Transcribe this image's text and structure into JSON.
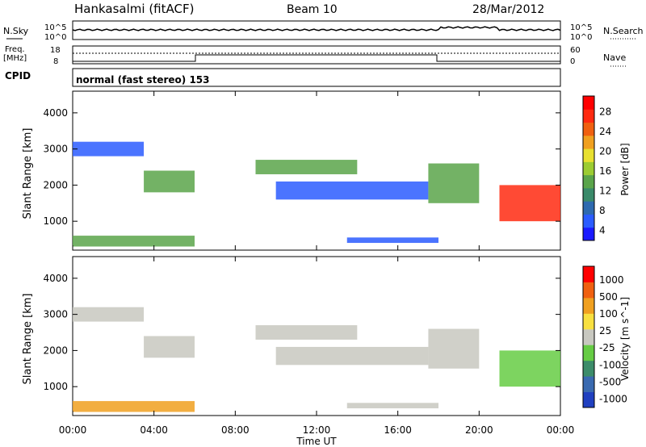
{
  "header": {
    "station": "Hankasalmi (fitACF)",
    "beam": "Beam 10",
    "date": "28/Mar/2012"
  },
  "status_panels": {
    "nsky_label": "N.Sky",
    "nsky_ticks": [
      "10^5",
      "10^0"
    ],
    "nsearch_label": "N.Search",
    "nsearch_ticks": [
      "10^5",
      "10^0"
    ],
    "freq_label": "Freq.",
    "freq_unit": "[MHz]",
    "freq_ticks": [
      "18",
      "8"
    ],
    "nave_label": "Nave",
    "nave_ticks": [
      "60",
      "0"
    ],
    "cpid_label": "CPID",
    "cpid_text": "normal (fast stereo) 153"
  },
  "chart_data": [
    {
      "type": "heatmap",
      "name": "power",
      "ylabel": "Slant Range [km]",
      "xlabel": "",
      "y_ticks": [
        "4000",
        "3000",
        "2000",
        "1000"
      ],
      "ylim": [
        200,
        4600
      ],
      "xlim_hours": [
        0,
        24
      ],
      "colorbar_label": "Power [dB]",
      "colorbar_ticks": [
        "28",
        "24",
        "20",
        "16",
        "12",
        "8",
        "4"
      ],
      "colorbar_colors": [
        "#1a1aff",
        "#2b5cff",
        "#2e6ab0",
        "#3a8a6a",
        "#5aa44a",
        "#9ccc32",
        "#e8e030",
        "#f0a020",
        "#f06010",
        "#ff2a10",
        "#ff0000"
      ],
      "echo_regions": [
        {
          "t0": 0.0,
          "t1": 3.5,
          "r0": 2800,
          "r1": 3200,
          "level": "low"
        },
        {
          "t0": 3.5,
          "t1": 6.0,
          "r0": 1800,
          "r1": 2400,
          "level": "mid"
        },
        {
          "t0": 9.0,
          "t1": 14.0,
          "r0": 2300,
          "r1": 2700,
          "level": "mid"
        },
        {
          "t0": 10.0,
          "t1": 17.5,
          "r0": 1600,
          "r1": 2100,
          "level": "low"
        },
        {
          "t0": 0.0,
          "t1": 6.0,
          "r0": 300,
          "r1": 600,
          "level": "mid"
        },
        {
          "t0": 13.5,
          "t1": 18.0,
          "r0": 400,
          "r1": 550,
          "level": "low"
        },
        {
          "t0": 17.5,
          "t1": 20.0,
          "r0": 1500,
          "r1": 2600,
          "level": "mid"
        },
        {
          "t0": 21.0,
          "t1": 24.0,
          "r0": 1000,
          "r1": 2000,
          "level": "high"
        }
      ]
    },
    {
      "type": "heatmap",
      "name": "velocity",
      "ylabel": "Slant Range [km]",
      "xlabel": "Time UT",
      "x_ticks": [
        "00:00",
        "04:00",
        "08:00",
        "12:00",
        "16:00",
        "20:00",
        "00:00"
      ],
      "y_ticks": [
        "4000",
        "3000",
        "2000",
        "1000"
      ],
      "ylim": [
        200,
        4600
      ],
      "xlim_hours": [
        0,
        24
      ],
      "colorbar_label": "Velocity [m s^-1]",
      "colorbar_ticks": [
        "1000",
        "500",
        "100",
        "25",
        "-25",
        "-100",
        "-500",
        "-1000"
      ],
      "colorbar_colors": [
        "#2040c0",
        "#3a6ab0",
        "#3c8c6a",
        "#66cc44",
        "#c8c8c0",
        "#f8e040",
        "#f0a020",
        "#f06010",
        "#ff0000"
      ],
      "echo_regions": [
        {
          "t0": 0.0,
          "t1": 3.5,
          "r0": 2800,
          "r1": 3200,
          "level": "gray"
        },
        {
          "t0": 3.5,
          "t1": 6.0,
          "r0": 1800,
          "r1": 2400,
          "level": "gray"
        },
        {
          "t0": 9.0,
          "t1": 14.0,
          "r0": 2300,
          "r1": 2700,
          "level": "gray"
        },
        {
          "t0": 10.0,
          "t1": 17.5,
          "r0": 1600,
          "r1": 2100,
          "level": "gray"
        },
        {
          "t0": 0.0,
          "t1": 6.0,
          "r0": 300,
          "r1": 600,
          "level": "orange"
        },
        {
          "t0": 13.5,
          "t1": 18.0,
          "r0": 400,
          "r1": 550,
          "level": "gray"
        },
        {
          "t0": 17.5,
          "t1": 20.0,
          "r0": 1500,
          "r1": 2600,
          "level": "gray"
        },
        {
          "t0": 21.0,
          "t1": 24.0,
          "r0": 1000,
          "r1": 2000,
          "level": "green"
        }
      ]
    }
  ]
}
